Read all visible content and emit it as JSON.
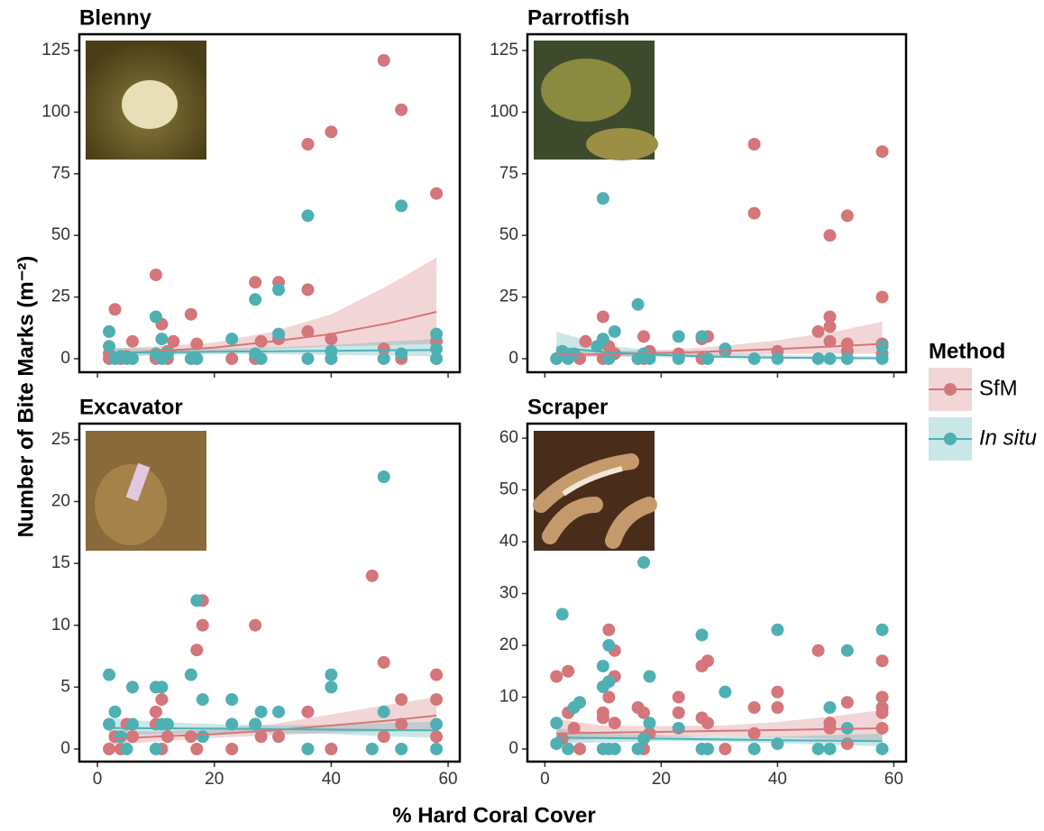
{
  "x_label": "% Hard Coral Cover",
  "y_label": "Number of Bite Marks (m⁻²)",
  "legend": {
    "title": "Method"
  },
  "chart_data": [
    {
      "type": "scatter",
      "title": "Blenny",
      "xlim": [
        -3.1,
        62
      ],
      "ylim": [
        -5.5,
        131.6
      ],
      "xticks": [
        0,
        20,
        40,
        60
      ],
      "yticks": [
        0,
        25,
        50,
        75,
        100,
        125
      ],
      "series": [
        {
          "name": "SfM",
          "color": "#d4767a",
          "x": [
            2,
            3,
            4,
            6,
            10,
            10,
            11,
            12,
            13,
            16,
            17,
            17,
            23,
            27,
            27,
            28,
            31,
            31,
            36,
            36,
            36,
            40,
            40,
            40,
            49,
            49,
            52,
            52,
            58,
            58,
            58,
            2,
            5,
            10,
            12
          ],
          "values": [
            0,
            20,
            0,
            7,
            34,
            0,
            14,
            0,
            7,
            18,
            6,
            0,
            0,
            31,
            0,
            7,
            31,
            8,
            87,
            28,
            11,
            92,
            8,
            0,
            121,
            4,
            101,
            0,
            67,
            0,
            7,
            2,
            1,
            1,
            3
          ],
          "fit": {
            "x": [
              2,
              10,
              20,
              30,
              40,
              50,
              58
            ],
            "y": [
              2,
              3,
              4.5,
              7,
              10,
              14.5,
              19
            ],
            "lower": [
              0.5,
              1.5,
              2.5,
              4,
              5,
              5.5,
              6
            ],
            "upper": [
              4,
              5,
              6.5,
              11,
              18,
              30,
              41
            ]
          }
        },
        {
          "name": "In situ",
          "color": "#4fb0b4",
          "x": [
            2,
            2,
            3,
            4,
            5,
            6,
            10,
            10,
            11,
            11,
            12,
            16,
            17,
            23,
            27,
            27,
            28,
            31,
            31,
            36,
            36,
            40,
            40,
            49,
            52,
            52,
            58,
            58,
            58
          ],
          "values": [
            11,
            5,
            0,
            1,
            0,
            0,
            17,
            2,
            8,
            0,
            2,
            0,
            0,
            8,
            24,
            2,
            0,
            28,
            10,
            58,
            0,
            0,
            3,
            0,
            62,
            2,
            10,
            4,
            0
          ],
          "fit": {
            "x": [
              2,
              10,
              20,
              30,
              40,
              50,
              58
            ],
            "y": [
              2.5,
              2.6,
              2.8,
              3,
              3.2,
              3.4,
              3.5
            ],
            "lower": [
              1,
              1.5,
              1.8,
              1.8,
              1.5,
              1.2,
              1
            ],
            "upper": [
              4.5,
              4,
              4,
              4.5,
              5.5,
              7,
              8
            ]
          }
        }
      ]
    },
    {
      "type": "scatter",
      "title": "Parrotfish",
      "xlim": [
        -3,
        62.1
      ],
      "ylim": [
        -5.5,
        131.6
      ],
      "xticks": [
        0,
        20,
        40,
        60
      ],
      "yticks": [
        0,
        25,
        50,
        75,
        100,
        125
      ],
      "series": [
        {
          "name": "SfM",
          "color": "#d4767a",
          "x": [
            2,
            4,
            6,
            7,
            10,
            10,
            11,
            12,
            16,
            17,
            17,
            18,
            23,
            27,
            27,
            28,
            31,
            36,
            36,
            40,
            47,
            49,
            49,
            49,
            49,
            52,
            52,
            52,
            58,
            58,
            58,
            58
          ],
          "values": [
            0,
            1,
            0,
            7,
            17,
            0,
            5,
            2,
            0,
            9,
            0,
            3,
            2,
            8,
            0,
            9,
            3,
            87,
            59,
            3,
            11,
            50,
            17,
            13,
            7,
            58,
            6,
            3,
            84,
            25,
            6,
            2
          ],
          "fit": {
            "x": [
              2,
              10,
              20,
              30,
              40,
              50,
              58
            ],
            "y": [
              1.5,
              1.8,
              2.3,
              3,
              3.9,
              5,
              6
            ],
            "lower": [
              0.5,
              0.8,
              1.2,
              1.5,
              1.8,
              2,
              2
            ],
            "upper": [
              3.5,
              3,
              3.5,
              5,
              7.5,
              11,
              15
            ]
          }
        },
        {
          "name": "In situ",
          "color": "#4fb0b4",
          "x": [
            2,
            3,
            4,
            5,
            9,
            10,
            10,
            11,
            12,
            16,
            16,
            17,
            18,
            23,
            23,
            27,
            28,
            31,
            36,
            40,
            47,
            49,
            52,
            58,
            58
          ],
          "values": [
            0,
            3,
            0,
            2,
            5,
            65,
            8,
            0,
            11,
            22,
            0,
            2,
            0,
            9,
            0,
            9,
            0,
            4,
            0,
            0,
            0,
            0,
            0,
            5,
            0
          ],
          "fit": {
            "x": [
              2,
              10,
              20,
              30,
              40,
              50,
              58
            ],
            "y": [
              4.5,
              2.8,
              1.5,
              0.8,
              0.4,
              0.2,
              0.1
            ],
            "lower": [
              1,
              1,
              0.5,
              0.2,
              0,
              0,
              0
            ],
            "upper": [
              11,
              5.5,
              3,
              2,
              1.5,
              1.2,
              1
            ]
          }
        }
      ]
    },
    {
      "type": "scatter",
      "title": "Excavator",
      "xlim": [
        -3.1,
        62
      ],
      "ylim": [
        -1.02,
        26.3
      ],
      "xticks": [
        0,
        20,
        40,
        60
      ],
      "yticks": [
        0,
        5,
        10,
        15,
        20,
        25
      ],
      "series": [
        {
          "name": "SfM",
          "color": "#d4767a",
          "x": [
            2,
            3,
            4,
            5,
            6,
            10,
            10,
            11,
            11,
            12,
            16,
            17,
            17,
            18,
            18,
            23,
            27,
            27,
            28,
            31,
            36,
            40,
            47,
            49,
            49,
            52,
            52,
            58,
            58,
            58
          ],
          "values": [
            0,
            1,
            0,
            2,
            1,
            3,
            2,
            4,
            0,
            1,
            1,
            8,
            0,
            12,
            10,
            0,
            10,
            2,
            1,
            1,
            3,
            0,
            14,
            7,
            1,
            4,
            2,
            6,
            4,
            1
          ],
          "fit": {
            "x": [
              2,
              10,
              20,
              30,
              40,
              50,
              58
            ],
            "y": [
              0.8,
              1,
              1.2,
              1.5,
              1.9,
              2.3,
              2.7
            ],
            "lower": [
              0.3,
              0.6,
              0.9,
              1.1,
              1.3,
              1.4,
              1.5
            ],
            "upper": [
              1.5,
              1.4,
              1.6,
              2,
              2.8,
              3.6,
              4.2
            ]
          }
        },
        {
          "name": "In situ",
          "color": "#4fb0b4",
          "x": [
            2,
            2,
            3,
            4,
            5,
            6,
            6,
            10,
            10,
            11,
            11,
            12,
            16,
            17,
            18,
            18,
            23,
            23,
            27,
            28,
            31,
            36,
            40,
            40,
            47,
            49,
            49,
            52,
            58,
            58
          ],
          "values": [
            6,
            2,
            3,
            1,
            0,
            5,
            2,
            5,
            0,
            5,
            2,
            2,
            6,
            12,
            4,
            1,
            4,
            2,
            2,
            3,
            3,
            0,
            6,
            5,
            0,
            22,
            3,
            0,
            2,
            0
          ],
          "fit": {
            "x": [
              2,
              10,
              20,
              30,
              40,
              50,
              58
            ],
            "y": [
              1.7,
              1.68,
              1.65,
              1.6,
              1.57,
              1.53,
              1.5
            ],
            "lower": [
              1,
              1.2,
              1.3,
              1.3,
              1.2,
              1,
              0.9
            ],
            "upper": [
              2.5,
              2.2,
              2,
              1.9,
              1.95,
              2.1,
              2.2
            ]
          }
        }
      ]
    },
    {
      "type": "scatter",
      "title": "Scraper",
      "xlim": [
        -3,
        62.1
      ],
      "ylim": [
        -2.44,
        62.8
      ],
      "xticks": [
        0,
        20,
        40,
        60
      ],
      "yticks": [
        0,
        10,
        20,
        30,
        40,
        50,
        60
      ],
      "series": [
        {
          "name": "SfM",
          "color": "#d4767a",
          "x": [
            2,
            3,
            4,
            4,
            5,
            6,
            10,
            10,
            11,
            11,
            12,
            12,
            12,
            16,
            17,
            17,
            18,
            23,
            23,
            27,
            27,
            28,
            28,
            31,
            36,
            36,
            40,
            40,
            47,
            49,
            49,
            52,
            52,
            58,
            58,
            58,
            58,
            58
          ],
          "values": [
            14,
            2,
            15,
            7,
            4,
            0,
            7,
            6,
            23,
            10,
            19,
            14,
            5,
            8,
            7,
            0,
            3,
            10,
            7,
            16,
            6,
            17,
            5,
            0,
            8,
            3,
            11,
            8,
            19,
            5,
            4,
            9,
            1,
            17,
            10,
            8,
            7,
            4
          ],
          "fit": {
            "x": [
              2,
              10,
              20,
              30,
              40,
              50,
              58
            ],
            "y": [
              3,
              3.15,
              3.3,
              3.5,
              3.65,
              3.85,
              4
            ],
            "lower": [
              1.5,
              2,
              2.3,
              2.5,
              2.3,
              1.9,
              1.5
            ],
            "upper": [
              5.8,
              4.5,
              4.4,
              4.5,
              5.2,
              6.4,
              7.5
            ]
          }
        },
        {
          "name": "In situ",
          "color": "#4fb0b4",
          "x": [
            2,
            2,
            3,
            4,
            5,
            6,
            10,
            10,
            10,
            11,
            11,
            11,
            12,
            16,
            17,
            17,
            18,
            18,
            23,
            27,
            27,
            28,
            31,
            36,
            40,
            40,
            47,
            49,
            49,
            52,
            52,
            58,
            58
          ],
          "values": [
            5,
            1,
            26,
            0,
            8,
            9,
            16,
            12,
            0,
            20,
            13,
            0,
            0,
            0,
            36,
            2,
            14,
            5,
            4,
            22,
            0,
            0,
            11,
            0,
            23,
            1,
            0,
            8,
            0,
            19,
            4,
            23,
            0
          ],
          "fit": {
            "x": [
              2,
              10,
              20,
              30,
              40,
              50,
              58
            ],
            "y": [
              2.2,
              2.1,
              2,
              1.85,
              1.7,
              1.6,
              1.5
            ],
            "lower": [
              1,
              1.3,
              1.5,
              1.4,
              1.1,
              0.8,
              0.5
            ],
            "upper": [
              4,
              3,
              2.6,
              2.4,
              2.4,
              2.7,
              3
            ]
          }
        }
      ]
    }
  ]
}
